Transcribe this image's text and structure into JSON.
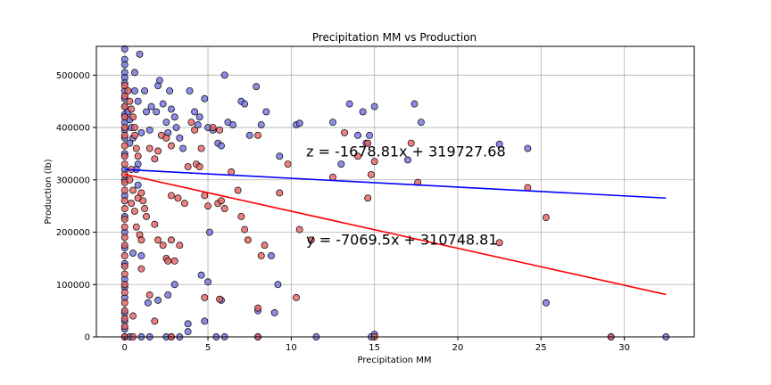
{
  "chart_data": {
    "type": "scatter",
    "title": "Precipitation MM vs Production",
    "xlabel": "Precipitation MM",
    "ylabel": "Production (lb)",
    "xlim": [
      -1.7,
      34.2
    ],
    "ylim": [
      0,
      555000
    ],
    "xticks": [
      0,
      5,
      10,
      15,
      20,
      25,
      30
    ],
    "xtick_labels": [
      "0",
      "5",
      "10",
      "15",
      "20",
      "25",
      "30"
    ],
    "yticks": [
      0,
      100000,
      200000,
      300000,
      400000,
      500000
    ],
    "ytick_labels": [
      "0",
      "100000",
      "200000",
      "300000",
      "400000",
      "500000"
    ],
    "grid": true,
    "series": [
      {
        "color": "#4040d0",
        "marker_color": "#7070e0",
        "points": [
          [
            0,
            550000
          ],
          [
            0,
            530000
          ],
          [
            0,
            520000
          ],
          [
            0,
            505000
          ],
          [
            0,
            495000
          ],
          [
            0,
            485000
          ],
          [
            0,
            470000
          ],
          [
            0,
            455000
          ],
          [
            0,
            440000
          ],
          [
            0,
            425000
          ],
          [
            0,
            410000
          ],
          [
            0,
            395000
          ],
          [
            0,
            380000
          ],
          [
            0,
            350000
          ],
          [
            0,
            320000
          ],
          [
            0,
            300000
          ],
          [
            0,
            270000
          ],
          [
            0,
            230000
          ],
          [
            0,
            200000
          ],
          [
            0,
            170000
          ],
          [
            0,
            140000
          ],
          [
            0,
            110000
          ],
          [
            0,
            95000
          ],
          [
            0,
            75000
          ],
          [
            0,
            45000
          ],
          [
            0,
            30000
          ],
          [
            0,
            15000
          ],
          [
            0,
            0
          ],
          [
            0.2,
            430000
          ],
          [
            0.3,
            415000
          ],
          [
            0.4,
            400000
          ],
          [
            0.5,
            380000
          ],
          [
            0.3,
            370000
          ],
          [
            0.6,
            505000
          ],
          [
            0.6,
            470000
          ],
          [
            0.8,
            450000
          ],
          [
            0.9,
            540000
          ],
          [
            1.0,
            390000
          ],
          [
            0.8,
            330000
          ],
          [
            0.7,
            320000
          ],
          [
            1.2,
            470000
          ],
          [
            1.3,
            430000
          ],
          [
            1.5,
            395000
          ],
          [
            1.6,
            440000
          ],
          [
            1.9,
            430000
          ],
          [
            2.0,
            480000
          ],
          [
            2.1,
            490000
          ],
          [
            2.3,
            445000
          ],
          [
            2.5,
            410000
          ],
          [
            2.6,
            390000
          ],
          [
            2.7,
            470000
          ],
          [
            2.8,
            435000
          ],
          [
            3.0,
            420000
          ],
          [
            3.1,
            400000
          ],
          [
            3.3,
            380000
          ],
          [
            3.5,
            360000
          ],
          [
            3.9,
            470000
          ],
          [
            4.2,
            430000
          ],
          [
            4.4,
            405000
          ],
          [
            4.5,
            420000
          ],
          [
            4.8,
            455000
          ],
          [
            5.0,
            400000
          ],
          [
            5.3,
            395000
          ],
          [
            5.6,
            370000
          ],
          [
            5.8,
            365000
          ],
          [
            6.0,
            500000
          ],
          [
            6.2,
            410000
          ],
          [
            6.5,
            405000
          ],
          [
            7.0,
            450000
          ],
          [
            7.2,
            445000
          ],
          [
            7.5,
            385000
          ],
          [
            7.9,
            478000
          ],
          [
            8.2,
            405000
          ],
          [
            8.5,
            430000
          ],
          [
            9.3,
            345000
          ],
          [
            10.3,
            405000
          ],
          [
            10.5,
            408000
          ],
          [
            12.5,
            410000
          ],
          [
            13.0,
            330000
          ],
          [
            13.5,
            445000
          ],
          [
            14.0,
            385000
          ],
          [
            14.3,
            430000
          ],
          [
            14.5,
            370000
          ],
          [
            14.7,
            385000
          ],
          [
            15.0,
            440000
          ],
          [
            17.0,
            338000
          ],
          [
            17.4,
            445000
          ],
          [
            17.8,
            410000
          ],
          [
            22.5,
            368000
          ],
          [
            24.2,
            360000
          ],
          [
            25.3,
            65000
          ],
          [
            32.5,
            0
          ],
          [
            29.2,
            0
          ],
          [
            0.8,
            290000
          ],
          [
            0.5,
            160000
          ],
          [
            1.0,
            155000
          ],
          [
            1.4,
            65000
          ],
          [
            2.0,
            70000
          ],
          [
            2.6,
            80000
          ],
          [
            3.0,
            100000
          ],
          [
            3.3,
            0
          ],
          [
            3.8,
            25000
          ],
          [
            3.8,
            10000
          ],
          [
            4.8,
            30000
          ],
          [
            5.0,
            105000
          ],
          [
            4.6,
            118000
          ],
          [
            5.8,
            70000
          ],
          [
            8.0,
            50000
          ],
          [
            8.8,
            155000
          ],
          [
            9.0,
            46000
          ],
          [
            9.2,
            100000
          ],
          [
            5.1,
            200000
          ],
          [
            8.0,
            0
          ],
          [
            11.5,
            0
          ],
          [
            14.8,
            0
          ],
          [
            15.0,
            5000
          ],
          [
            0.3,
            0
          ],
          [
            1.0,
            0
          ],
          [
            1.5,
            0
          ],
          [
            2.5,
            0
          ],
          [
            5.5,
            0
          ],
          [
            6.0,
            0
          ]
        ]
      },
      {
        "color": "#e02020",
        "marker_color": "#e86060",
        "points": [
          [
            0,
            480000
          ],
          [
            0,
            460000
          ],
          [
            0,
            440000
          ],
          [
            0,
            420000
          ],
          [
            0,
            400000
          ],
          [
            0,
            385000
          ],
          [
            0,
            365000
          ],
          [
            0,
            345000
          ],
          [
            0,
            330000
          ],
          [
            0,
            310000
          ],
          [
            0,
            295000
          ],
          [
            0,
            280000
          ],
          [
            0,
            260000
          ],
          [
            0,
            245000
          ],
          [
            0,
            225000
          ],
          [
            0,
            210000
          ],
          [
            0,
            190000
          ],
          [
            0,
            175000
          ],
          [
            0,
            155000
          ],
          [
            0,
            135000
          ],
          [
            0,
            120000
          ],
          [
            0,
            100000
          ],
          [
            0,
            85000
          ],
          [
            0,
            65000
          ],
          [
            0,
            50000
          ],
          [
            0,
            35000
          ],
          [
            0,
            20000
          ],
          [
            0,
            0
          ],
          [
            0.2,
            470000
          ],
          [
            0.3,
            450000
          ],
          [
            0.4,
            435000
          ],
          [
            0.5,
            420000
          ],
          [
            0.6,
            400000
          ],
          [
            0.6,
            385000
          ],
          [
            0.7,
            360000
          ],
          [
            0.8,
            345000
          ],
          [
            0.4,
            320000
          ],
          [
            0.3,
            300000
          ],
          [
            0.5,
            280000
          ],
          [
            0.4,
            255000
          ],
          [
            0.6,
            240000
          ],
          [
            0.8,
            265000
          ],
          [
            1.0,
            275000
          ],
          [
            1.1,
            260000
          ],
          [
            1.2,
            245000
          ],
          [
            1.3,
            230000
          ],
          [
            0.7,
            210000
          ],
          [
            0.9,
            195000
          ],
          [
            1.0,
            185000
          ],
          [
            1.5,
            360000
          ],
          [
            1.8,
            340000
          ],
          [
            2.0,
            355000
          ],
          [
            2.2,
            385000
          ],
          [
            2.5,
            380000
          ],
          [
            2.8,
            365000
          ],
          [
            1.8,
            215000
          ],
          [
            2.0,
            185000
          ],
          [
            2.3,
            175000
          ],
          [
            2.5,
            150000
          ],
          [
            2.6,
            145000
          ],
          [
            3.0,
            145000
          ],
          [
            3.3,
            175000
          ],
          [
            2.8,
            185000
          ],
          [
            3.2,
            265000
          ],
          [
            2.8,
            270000
          ],
          [
            3.6,
            255000
          ],
          [
            3.8,
            325000
          ],
          [
            4.0,
            410000
          ],
          [
            4.2,
            395000
          ],
          [
            4.6,
            360000
          ],
          [
            4.3,
            330000
          ],
          [
            4.5,
            325000
          ],
          [
            4.8,
            270000
          ],
          [
            5.0,
            250000
          ],
          [
            5.3,
            400000
          ],
          [
            5.7,
            395000
          ],
          [
            5.6,
            255000
          ],
          [
            5.8,
            260000
          ],
          [
            6.0,
            245000
          ],
          [
            6.4,
            315000
          ],
          [
            6.8,
            280000
          ],
          [
            7.0,
            230000
          ],
          [
            7.2,
            205000
          ],
          [
            7.4,
            185000
          ],
          [
            8.0,
            385000
          ],
          [
            8.4,
            175000
          ],
          [
            8.2,
            155000
          ],
          [
            9.3,
            275000
          ],
          [
            9.8,
            330000
          ],
          [
            10.5,
            205000
          ],
          [
            11.2,
            185000
          ],
          [
            13.2,
            390000
          ],
          [
            14.0,
            345000
          ],
          [
            14.6,
            370000
          ],
          [
            14.8,
            310000
          ],
          [
            15.0,
            335000
          ],
          [
            14.6,
            265000
          ],
          [
            17.2,
            370000
          ],
          [
            17.6,
            295000
          ],
          [
            22.5,
            180000
          ],
          [
            24.2,
            285000
          ],
          [
            25.3,
            228000
          ],
          [
            1.0,
            130000
          ],
          [
            1.5,
            80000
          ],
          [
            1.8,
            30000
          ],
          [
            0.5,
            40000
          ],
          [
            2.8,
            0
          ],
          [
            4.8,
            75000
          ],
          [
            5.7,
            72000
          ],
          [
            8.0,
            55000
          ],
          [
            10.3,
            75000
          ],
          [
            2.8,
            0
          ],
          [
            15.0,
            0
          ],
          [
            29.2,
            0
          ],
          [
            8.0,
            0
          ],
          [
            0.5,
            0
          ],
          [
            12.5,
            305000
          ]
        ]
      }
    ],
    "fit_lines": [
      {
        "color": "#0000ff",
        "slope": -1678.81,
        "intercept": 319727.68,
        "x_range": [
          0,
          32.5
        ],
        "label": "z = -1678.81x + 319727.68",
        "label_anchor": [
          10.9,
          345000
        ]
      },
      {
        "color": "#ff0000",
        "slope": -7069.5,
        "intercept": 310748.81,
        "x_range": [
          0,
          32.5
        ],
        "label": "y = -7069.5x + 310748.81",
        "label_anchor": [
          10.9,
          176000
        ]
      }
    ]
  }
}
